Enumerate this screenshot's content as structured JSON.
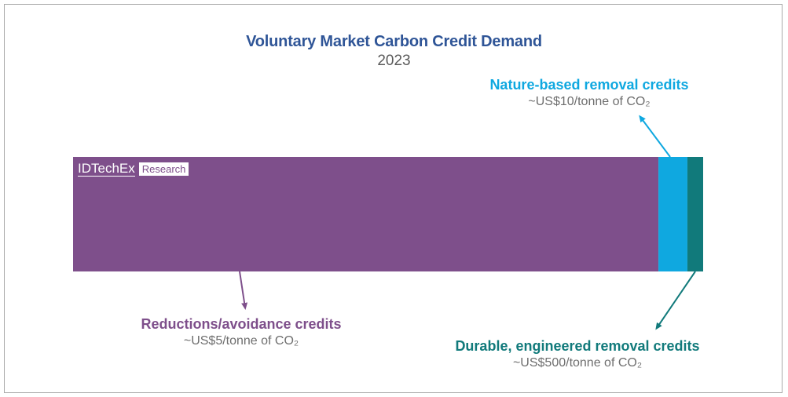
{
  "title": "Voluntary Market Carbon Credit Demand",
  "subtitle": "2023",
  "logo": {
    "brand": "IDTechEx",
    "tag": "Research"
  },
  "colors": {
    "title": "#2f5597",
    "reductions": "#7e4f8b",
    "nature": "#0fa8e0",
    "durable": "#117a7b"
  },
  "chart_data": {
    "type": "bar",
    "stacked": true,
    "orientation": "horizontal",
    "title": "Voluntary Market Carbon Credit Demand",
    "subtitle": "2023",
    "xlabel": "",
    "ylabel": "",
    "grid": false,
    "legend": "none",
    "series": [
      {
        "name": "Reductions/avoidance credits",
        "price": "~US$5/tonne of CO₂",
        "value": 92.9,
        "color": "#7e4f8b"
      },
      {
        "name": "Nature-based removal credits",
        "price": "~US$10/tonne of CO₂",
        "value": 4.6,
        "color": "#0fa8e0"
      },
      {
        "name": "Durable, engineered removal credits",
        "price": "~US$500/tonne of CO₂",
        "value": 2.5,
        "color": "#117a7b"
      }
    ]
  }
}
